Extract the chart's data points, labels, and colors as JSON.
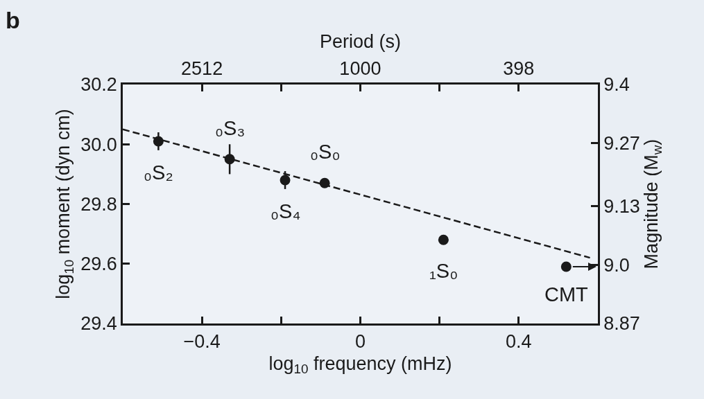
{
  "chart_data": {
    "type": "scatter",
    "title": "b",
    "xlabel": "log$_{10}$ frequency (mHz)",
    "ylabel": "log$_{10}$ moment (dyn cm)",
    "x2label": "Period (s)",
    "y2label": "Magnitude (M$_{w}$)",
    "xlim": [
      -0.6,
      0.6
    ],
    "xticks": [
      {
        "value": -0.4,
        "label": "−0.4"
      },
      {
        "value": -0.2,
        "label": null
      },
      0,
      {
        "value": 0.2,
        "label": null
      },
      0.4
    ],
    "x2lim": [
      3981,
      251
    ],
    "x2ticks": [
      2512,
      {
        "value": 1585,
        "label": null
      },
      1000,
      {
        "value": 631,
        "label": null
      },
      398
    ],
    "ylim": [
      29.4,
      30.2
    ],
    "yticks": [
      29.4,
      29.6,
      29.8,
      {
        "value": 30.0,
        "label": "30.0"
      },
      30.2
    ],
    "y2lim": [
      8.87,
      9.4
    ],
    "y2ticks": [
      8.87,
      {
        "value": 9.0,
        "label": "9.0"
      },
      9.13,
      9.27,
      9.4
    ],
    "grid": false,
    "log": "x2",
    "series": [
      {
        "color": "#1a1a1a",
        "marker": "circle",
        "x": [
          -0.51,
          -0.33,
          -0.19,
          -0.09,
          0.21,
          0.52
        ],
        "values": [
          30.01,
          29.95,
          29.88,
          29.87,
          29.68,
          29.59
        ],
        "errors": [
          0.03,
          0.05,
          0.03,
          null,
          null,
          null
        ]
      },
      {
        "type": "line",
        "color": "#1a1a1a",
        "marker": "none",
        "line_style": "dashed",
        "x": [
          -0.6,
          0.58
        ],
        "values": [
          30.05,
          29.62
        ]
      }
    ],
    "annotations": [
      {
        "text": "₀S₂",
        "x": -0.51,
        "y": 30.01
      },
      {
        "text": "₀S₃",
        "x": -0.33,
        "y": 29.95
      },
      {
        "text": "₀S₄",
        "x": -0.19,
        "y": 29.88
      },
      {
        "text": "₀S₀",
        "x": -0.09,
        "y": 29.87
      },
      {
        "text": "₁S₀",
        "x": 0.21,
        "y": 29.68
      },
      {
        "text": "CMT",
        "x": 0.52,
        "y": 29.59
      }
    ]
  }
}
